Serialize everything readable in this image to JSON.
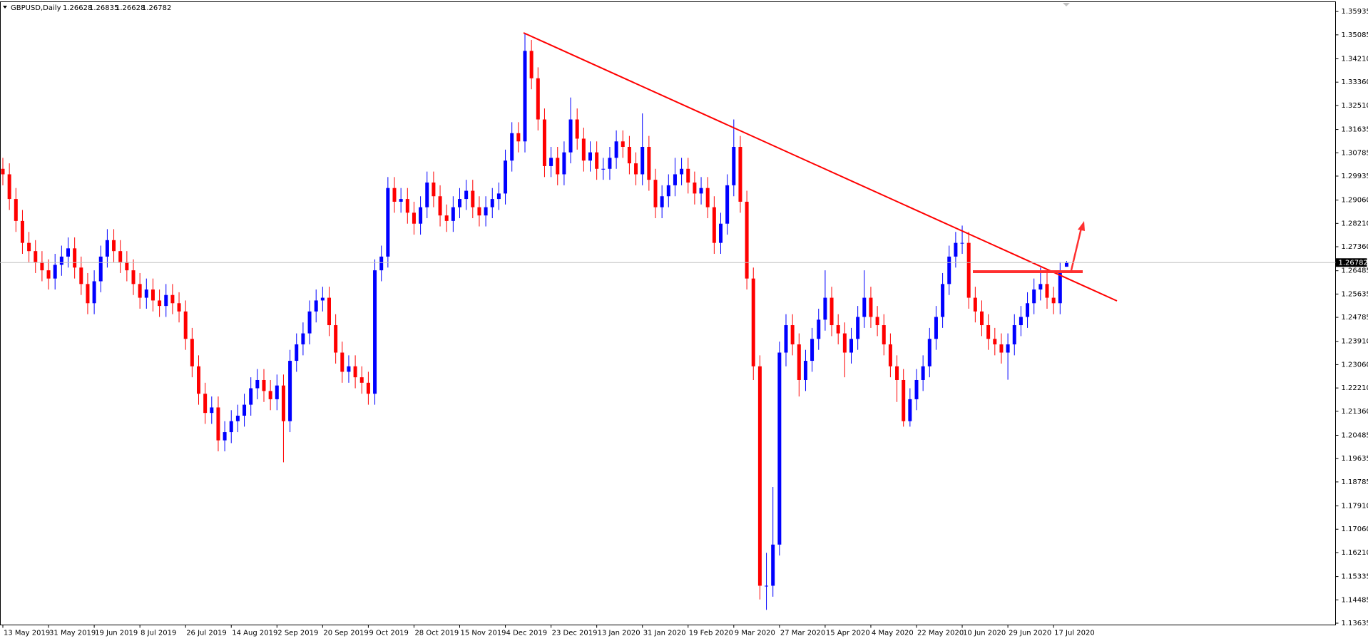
{
  "chart_data": {
    "type": "candlestick",
    "title": "GBPUSD,Daily",
    "ohlc_info": [
      1.26628,
      1.26835,
      1.26628,
      1.26782
    ],
    "up_color": "#0000ff",
    "down_color": "#ff0000",
    "ylim": [
      1.1357,
      1.3629
    ],
    "yticks": [
      1.35935,
      1.35085,
      {
        "value": 1.3421,
        "label": "1.34210"
      },
      {
        "value": 1.3336,
        "label": "1.33360"
      },
      {
        "value": 1.3251,
        "label": "1.32510"
      },
      1.31635,
      1.30785,
      1.29935,
      {
        "value": 1.2906,
        "label": "1.29060"
      },
      {
        "value": 1.2821,
        "label": "1.28210"
      },
      {
        "value": 1.2736,
        "label": "1.27360"
      },
      1.26485,
      1.25635,
      1.24785,
      {
        "value": 1.2391,
        "label": "1.23910"
      },
      {
        "value": 1.2306,
        "label": "1.23060"
      },
      {
        "value": 1.2221,
        "label": "1.22210"
      },
      {
        "value": 1.2136,
        "label": "1.21360"
      },
      1.20485,
      1.19635,
      1.18785,
      {
        "value": 1.1791,
        "label": "1.17910"
      },
      {
        "value": 1.1706,
        "label": "1.17060"
      },
      {
        "value": 1.1621,
        "label": "1.16210"
      },
      1.15335,
      1.14485,
      1.13635
    ],
    "categories": [
      "13 May 2019",
      null,
      null,
      null,
      null,
      null,
      null,
      "31 May 2019",
      null,
      null,
      null,
      null,
      null,
      null,
      "19 Jun 2019",
      null,
      null,
      null,
      null,
      null,
      null,
      "8 Jul 2019",
      null,
      null,
      null,
      null,
      null,
      null,
      "26 Jul 2019",
      null,
      null,
      null,
      null,
      null,
      null,
      "14 Aug 2019",
      null,
      null,
      null,
      null,
      null,
      null,
      "2 Sep 2019",
      null,
      null,
      null,
      null,
      null,
      null,
      "20 Sep 2019",
      null,
      null,
      null,
      null,
      null,
      null,
      "9 Oct 2019",
      null,
      null,
      null,
      null,
      null,
      null,
      "28 Oct 2019",
      null,
      null,
      null,
      null,
      null,
      null,
      "15 Nov 2019",
      null,
      null,
      null,
      null,
      null,
      null,
      "4 Dec 2019",
      null,
      null,
      null,
      null,
      null,
      null,
      "23 Dec 2019",
      null,
      null,
      null,
      null,
      null,
      null,
      "13 Jan 2020",
      null,
      null,
      null,
      null,
      null,
      null,
      "31 Jan 2020",
      null,
      null,
      null,
      null,
      null,
      null,
      "19 Feb 2020",
      null,
      null,
      null,
      null,
      null,
      null,
      "9 Mar 2020",
      null,
      null,
      null,
      null,
      null,
      null,
      "27 Mar 2020",
      null,
      null,
      null,
      null,
      null,
      null,
      "15 Apr 2020",
      null,
      null,
      null,
      null,
      null,
      null,
      "4 May 2020",
      null,
      null,
      null,
      null,
      null,
      null,
      "22 May 2020",
      null,
      null,
      null,
      null,
      null,
      null,
      "10 Jun 2020",
      null,
      null,
      null,
      null,
      null,
      null,
      "29 Jun 2020",
      null,
      null,
      null,
      null,
      null,
      null,
      "17 Jul 2020",
      null,
      null
    ],
    "open": [
      1.302,
      1.3,
      1.291,
      1.283,
      1.275,
      1.272,
      1.268,
      1.265,
      1.262,
      1.267,
      1.27,
      1.273,
      1.266,
      1.26,
      1.253,
      1.261,
      1.27,
      1.276,
      1.272,
      1.268,
      1.265,
      1.26,
      1.255,
      1.258,
      1.254,
      1.252,
      1.256,
      1.253,
      1.25,
      1.24,
      1.23,
      1.22,
      1.213,
      1.215,
      1.203,
      1.206,
      1.21,
      1.212,
      1.216,
      1.222,
      1.225,
      1.221,
      1.218,
      1.223,
      1.21,
      1.232,
      1.238,
      1.242,
      1.25,
      1.254,
      1.255,
      1.245,
      1.235,
      1.228,
      1.23,
      1.226,
      1.224,
      1.22,
      1.265,
      1.27,
      1.295,
      1.29,
      1.291,
      1.286,
      1.282,
      1.288,
      1.297,
      1.292,
      1.285,
      1.283,
      1.288,
      1.291,
      1.294,
      1.288,
      1.285,
      1.288,
      1.291,
      1.293,
      1.305,
      1.315,
      1.312,
      1.345,
      1.335,
      1.32,
      1.303,
      1.306,
      1.3,
      1.308,
      1.32,
      1.313,
      1.305,
      1.308,
      1.302,
      1.302,
      1.306,
      1.312,
      1.31,
      1.304,
      1.3,
      1.31,
      1.298,
      1.288,
      1.292,
      1.296,
      1.3,
      1.302,
      1.297,
      1.293,
      1.295,
      1.288,
      1.275,
      1.282,
      1.296,
      1.31,
      1.29,
      1.262,
      1.23,
      1.15,
      1.15,
      1.165,
      1.235,
      1.245,
      1.238,
      1.225,
      1.232,
      1.24,
      1.247,
      1.255,
      1.245,
      1.242,
      1.235,
      1.24,
      1.248,
      1.255,
      1.248,
      1.245,
      1.238,
      1.23,
      1.225,
      1.21,
      1.218,
      1.225,
      1.23,
      1.24,
      1.248,
      1.26,
      1.27,
      1.275,
      1.275,
      1.255,
      1.25,
      1.245,
      1.24,
      1.238,
      1.235,
      1.238,
      1.245,
      1.248,
      1.253,
      1.258,
      1.26,
      1.255,
      1.253,
      1.2663
    ],
    "high": [
      1.306,
      1.304,
      1.295,
      1.287,
      1.279,
      1.276,
      1.272,
      1.269,
      1.271,
      1.274,
      1.277,
      1.277,
      1.27,
      1.264,
      1.265,
      1.274,
      1.28,
      1.28,
      1.276,
      1.272,
      1.269,
      1.264,
      1.262,
      1.262,
      1.258,
      1.26,
      1.26,
      1.257,
      1.254,
      1.244,
      1.234,
      1.224,
      1.219,
      1.219,
      1.21,
      1.214,
      1.216,
      1.22,
      1.226,
      1.229,
      1.229,
      1.225,
      1.227,
      1.227,
      1.236,
      1.242,
      1.246,
      1.254,
      1.258,
      1.259,
      1.259,
      1.249,
      1.239,
      1.234,
      1.234,
      1.23,
      1.228,
      1.269,
      1.274,
      1.299,
      1.299,
      1.295,
      1.295,
      1.29,
      1.292,
      1.301,
      1.301,
      1.296,
      1.289,
      1.292,
      1.295,
      1.298,
      1.298,
      1.292,
      1.292,
      1.295,
      1.297,
      1.309,
      1.319,
      1.319,
      1.3514,
      1.349,
      1.339,
      1.324,
      1.31,
      1.31,
      1.312,
      1.328,
      1.324,
      1.317,
      1.312,
      1.312,
      1.306,
      1.31,
      1.316,
      1.316,
      1.314,
      1.308,
      1.3222,
      1.314,
      1.302,
      1.296,
      1.3,
      1.306,
      1.306,
      1.306,
      1.301,
      1.299,
      1.299,
      1.292,
      1.286,
      1.3,
      1.32,
      1.314,
      1.294,
      1.266,
      1.234,
      1.162,
      1.186,
      1.239,
      1.249,
      1.249,
      1.242,
      1.236,
      1.244,
      1.251,
      1.265,
      1.259,
      1.249,
      1.246,
      1.244,
      1.252,
      1.265,
      1.259,
      1.252,
      1.249,
      1.242,
      1.234,
      1.229,
      1.222,
      1.229,
      1.234,
      1.244,
      1.252,
      1.264,
      1.274,
      1.279,
      1.2813,
      1.279,
      1.259,
      1.254,
      1.249,
      1.244,
      1.242,
      1.242,
      1.249,
      1.252,
      1.257,
      1.262,
      1.266,
      1.264,
      1.259,
      1.268,
      1.2684
    ],
    "low": [
      1.296,
      1.287,
      1.279,
      1.271,
      1.268,
      1.264,
      1.261,
      1.258,
      1.258,
      1.263,
      1.266,
      1.262,
      1.256,
      1.249,
      1.249,
      1.257,
      1.266,
      1.268,
      1.264,
      1.261,
      1.256,
      1.251,
      1.251,
      1.25,
      1.248,
      1.248,
      1.249,
      1.246,
      1.236,
      1.226,
      1.216,
      1.209,
      1.209,
      1.199,
      1.199,
      1.202,
      1.206,
      1.208,
      1.212,
      1.218,
      1.217,
      1.214,
      1.214,
      1.195,
      1.206,
      1.228,
      1.234,
      1.238,
      1.246,
      1.25,
      1.241,
      1.231,
      1.224,
      1.224,
      1.222,
      1.22,
      1.216,
      1.216,
      1.261,
      1.266,
      1.286,
      1.286,
      1.282,
      1.278,
      1.278,
      1.284,
      1.288,
      1.281,
      1.279,
      1.279,
      1.284,
      1.287,
      1.284,
      1.281,
      1.281,
      1.284,
      1.287,
      1.289,
      1.301,
      1.308,
      1.308,
      1.331,
      1.316,
      1.299,
      1.299,
      1.296,
      1.296,
      1.304,
      1.309,
      1.301,
      1.301,
      1.298,
      1.298,
      1.298,
      1.302,
      1.306,
      1.3,
      1.296,
      1.296,
      1.294,
      1.284,
      1.284,
      1.288,
      1.292,
      1.296,
      1.293,
      1.289,
      1.289,
      1.284,
      1.271,
      1.271,
      1.278,
      1.292,
      1.286,
      1.258,
      1.225,
      1.145,
      1.1412,
      1.146,
      1.161,
      1.23,
      1.234,
      1.219,
      1.221,
      1.228,
      1.236,
      1.243,
      1.241,
      1.238,
      1.226,
      1.231,
      1.236,
      1.244,
      1.244,
      1.241,
      1.234,
      1.226,
      1.217,
      1.208,
      1.208,
      1.214,
      1.221,
      1.226,
      1.236,
      1.244,
      1.256,
      1.266,
      1.271,
      1.251,
      1.246,
      1.241,
      1.236,
      1.234,
      1.231,
      1.2251,
      1.234,
      1.241,
      1.244,
      1.249,
      1.254,
      1.251,
      1.249,
      1.249,
      1.2663
    ],
    "close": [
      1.3,
      1.291,
      1.283,
      1.275,
      1.272,
      1.268,
      1.265,
      1.262,
      1.267,
      1.27,
      1.273,
      1.266,
      1.26,
      1.253,
      1.261,
      1.27,
      1.276,
      1.272,
      1.268,
      1.265,
      1.26,
      1.255,
      1.258,
      1.254,
      1.252,
      1.256,
      1.253,
      1.25,
      1.24,
      1.23,
      1.22,
      1.213,
      1.215,
      1.203,
      1.206,
      1.21,
      1.212,
      1.216,
      1.222,
      1.225,
      1.221,
      1.218,
      1.223,
      1.21,
      1.232,
      1.238,
      1.242,
      1.25,
      1.254,
      1.255,
      1.245,
      1.235,
      1.228,
      1.23,
      1.226,
      1.224,
      1.22,
      1.265,
      1.27,
      1.295,
      1.29,
      1.291,
      1.286,
      1.282,
      1.288,
      1.297,
      1.292,
      1.285,
      1.283,
      1.288,
      1.291,
      1.294,
      1.288,
      1.285,
      1.288,
      1.291,
      1.293,
      1.305,
      1.315,
      1.312,
      1.345,
      1.335,
      1.32,
      1.303,
      1.306,
      1.3,
      1.308,
      1.32,
      1.313,
      1.305,
      1.308,
      1.302,
      1.302,
      1.306,
      1.312,
      1.31,
      1.304,
      1.3,
      1.31,
      1.298,
      1.288,
      1.292,
      1.296,
      1.3,
      1.302,
      1.297,
      1.293,
      1.295,
      1.288,
      1.275,
      1.282,
      1.296,
      1.31,
      1.29,
      1.262,
      1.23,
      1.15,
      1.15,
      1.165,
      1.235,
      1.245,
      1.238,
      1.225,
      1.232,
      1.24,
      1.247,
      1.255,
      1.245,
      1.242,
      1.235,
      1.24,
      1.248,
      1.255,
      1.248,
      1.245,
      1.238,
      1.23,
      1.225,
      1.21,
      1.218,
      1.225,
      1.23,
      1.24,
      1.248,
      1.26,
      1.27,
      1.275,
      1.275,
      1.255,
      1.25,
      1.245,
      1.24,
      1.238,
      1.235,
      1.238,
      1.245,
      1.248,
      1.253,
      1.258,
      1.26,
      1.255,
      1.253,
      1.264,
      1.2678
    ]
  }
}
